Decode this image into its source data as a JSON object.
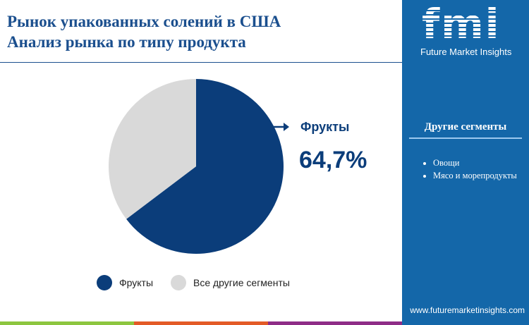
{
  "header": {
    "title_line1": "Рынок упакованных солений в США",
    "title_line2": "Анализ рынка по типу продукта"
  },
  "brand": {
    "logo": "fmi",
    "name": "Future Market Insights",
    "url": "www.futuremarketinsights.com"
  },
  "sidebar": {
    "heading": "Другие сегменты",
    "items": [
      "Овощи",
      "Мясо и морепродукты"
    ]
  },
  "callout": {
    "label": "Фрукты",
    "value": "64,7%"
  },
  "chart_data": {
    "type": "pie",
    "slices": [
      {
        "name": "Фрукты",
        "value": 64.7,
        "color": "#0b3d7a"
      },
      {
        "name": "Все другие сегменты",
        "color": "#d9d9d9"
      }
    ],
    "legend": [
      "Фрукты",
      "Все другие сегменты"
    ],
    "legend_placement": "bottom"
  },
  "colors": {
    "accent": "#1b4f8e",
    "sidebar": "#1467a9",
    "bar": [
      "#8dc63f",
      "#e35a26",
      "#8e2c87"
    ]
  }
}
